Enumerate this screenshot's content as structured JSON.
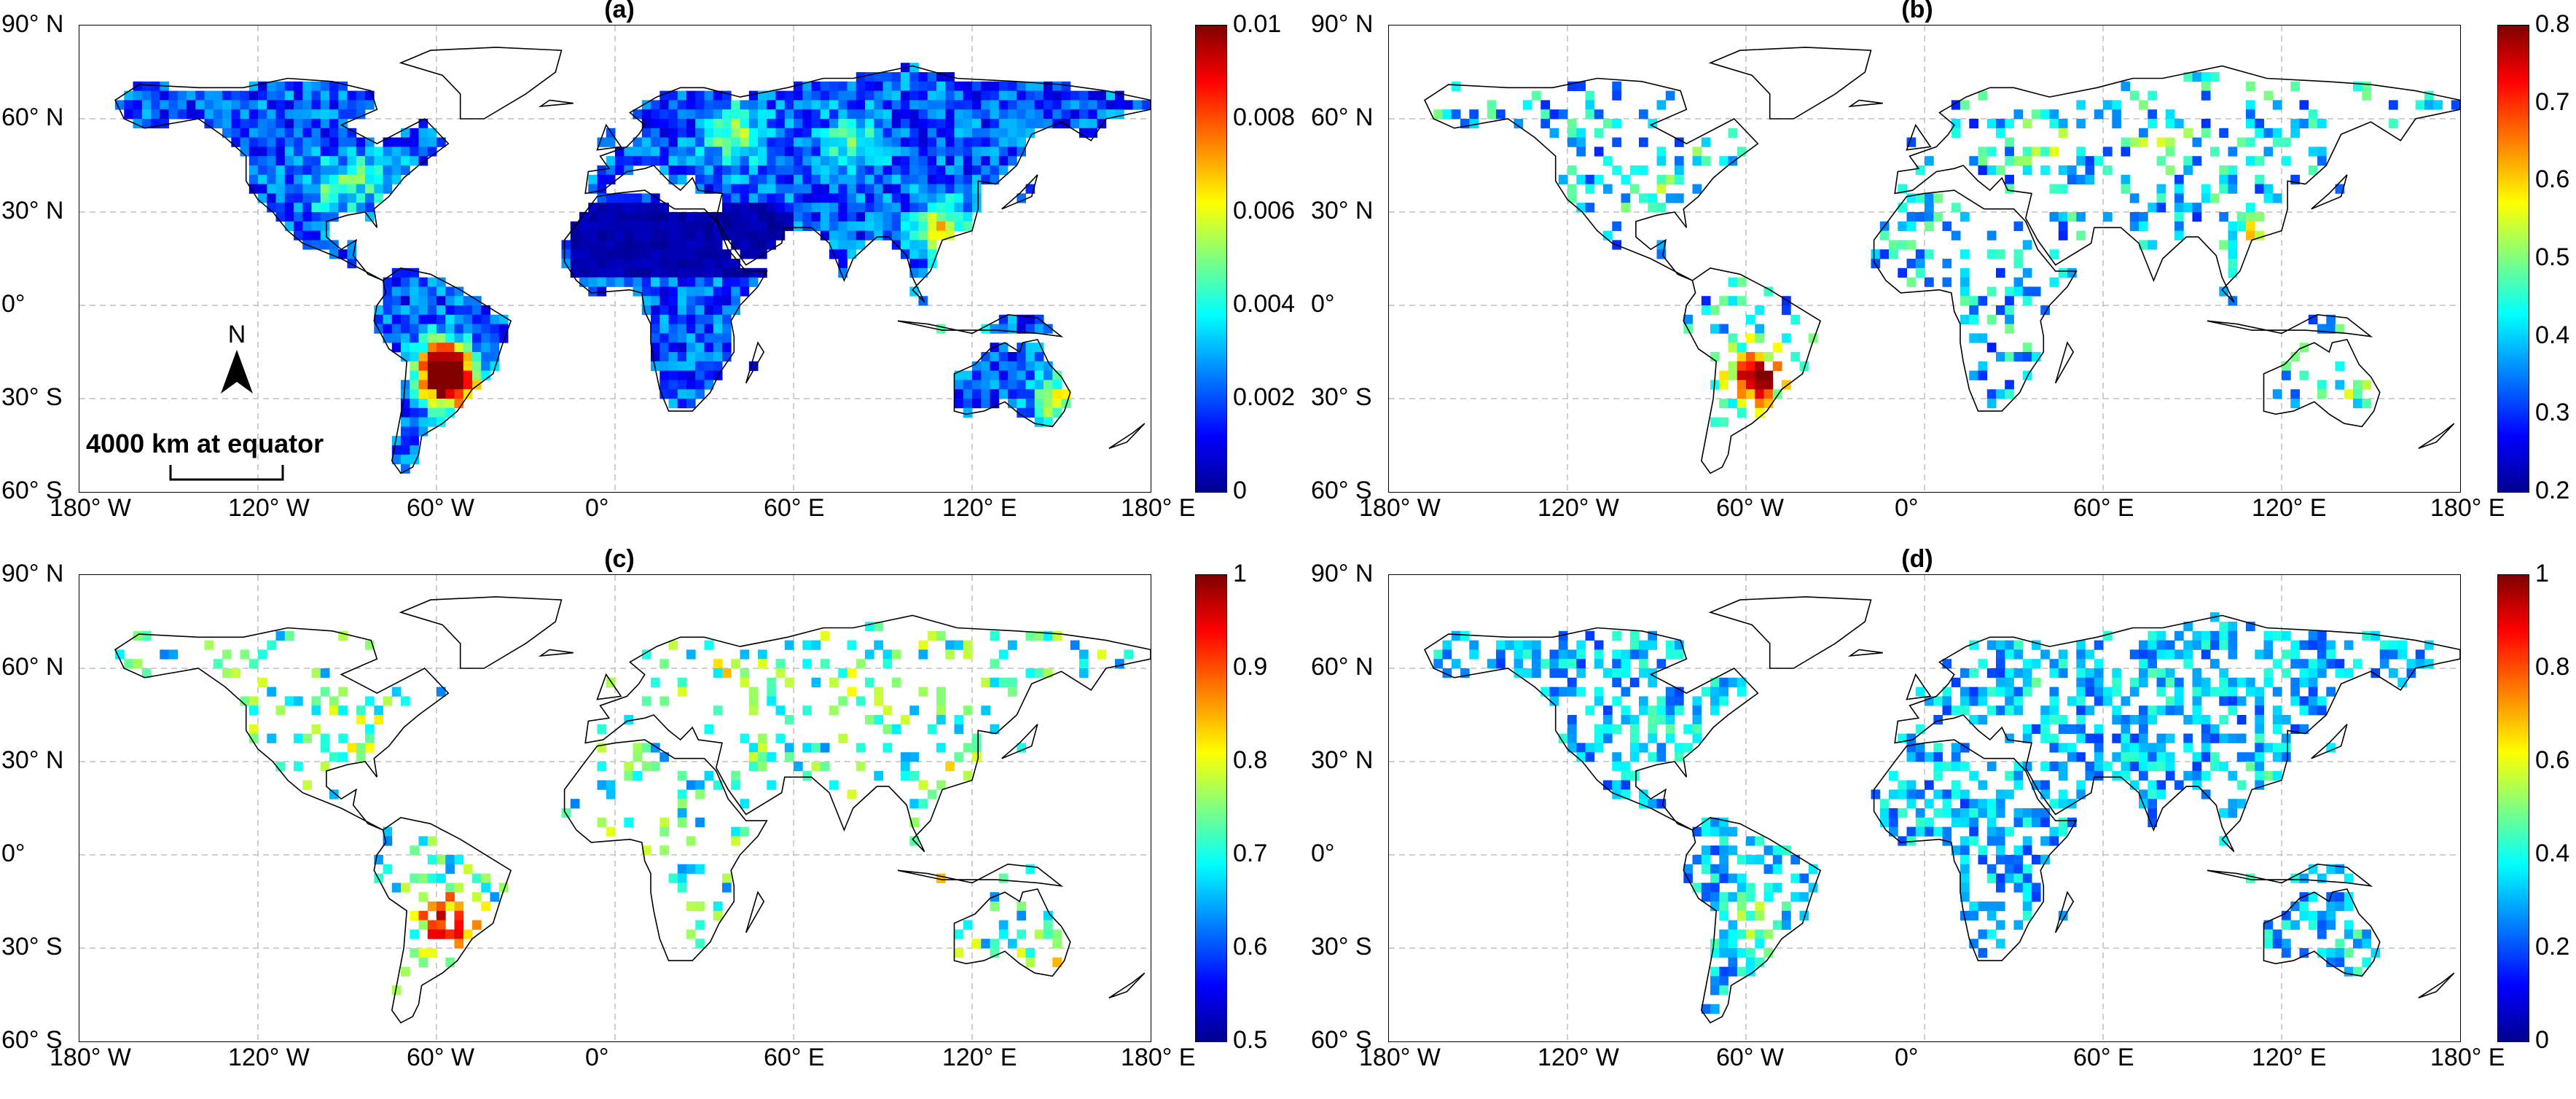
{
  "panels": [
    {
      "id": "a",
      "title": "(a)",
      "colorbar": {
        "ticks": [
          "0.01",
          "0.008",
          "0.006",
          "0.004",
          "0.002",
          "0"
        ]
      },
      "style": "dense"
    },
    {
      "id": "b",
      "title": "(b)",
      "colorbar": {
        "ticks": [
          "0.8",
          "0.7",
          "0.6",
          "0.5",
          "0.4",
          "0.3",
          "0.2"
        ]
      },
      "style": "sparse"
    },
    {
      "id": "c",
      "title": "(c)",
      "colorbar": {
        "ticks": [
          "1",
          "0.9",
          "0.8",
          "0.7",
          "0.6",
          "0.5"
        ]
      },
      "style": "sparse2"
    },
    {
      "id": "d",
      "title": "(d)",
      "colorbar": {
        "ticks": [
          "1",
          "0.8",
          "0.6",
          "0.4",
          "0.2",
          "0"
        ]
      },
      "style": "medium"
    }
  ],
  "lat_labels": [
    "90° N",
    "60° N",
    "30° N",
    "0°",
    "30° S",
    "60° S"
  ],
  "lon_labels": [
    "180° W",
    "120° W",
    "60° W",
    "0°",
    "60° E",
    "120° E",
    "180° E"
  ],
  "annotations": {
    "north_arrow": "N",
    "scale_bar": "4000 km at equator"
  },
  "colors": {
    "land_outline": "#000000",
    "grid": "#bfbfbf"
  }
}
